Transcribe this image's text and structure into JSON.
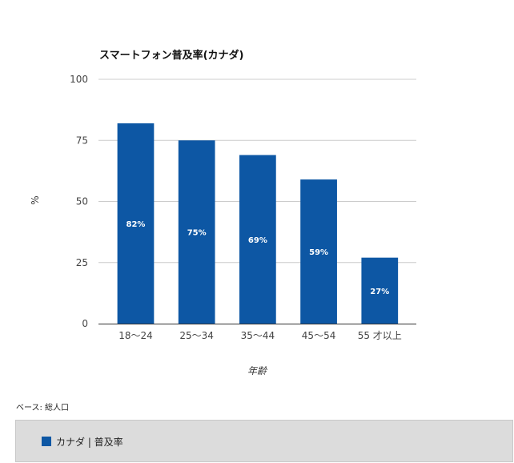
{
  "chart_data": {
    "type": "bar",
    "title": "スマートフォン普及率(カナダ)",
    "xlabel": "年齢",
    "ylabel": "%",
    "categories": [
      "18～24",
      "25～34",
      "35～44",
      "45～54",
      "55 才以上"
    ],
    "series": [
      {
        "name": "カナダ | 普及率",
        "values": [
          82,
          75,
          69,
          59,
          27
        ],
        "data_labels": [
          "82%",
          "75%",
          "69%",
          "59%",
          "27%"
        ],
        "color": "#0d57a4"
      }
    ],
    "ylim": [
      0,
      100
    ],
    "yticks": [
      0,
      25,
      50,
      75,
      100
    ],
    "ytick_labels": [
      "0",
      "25",
      "50",
      "75",
      "100"
    ],
    "grid": true,
    "gridline_color": "#cccccc",
    "legend_position": "bottom"
  },
  "footer": {
    "source_note": "ベース: 総人口"
  }
}
